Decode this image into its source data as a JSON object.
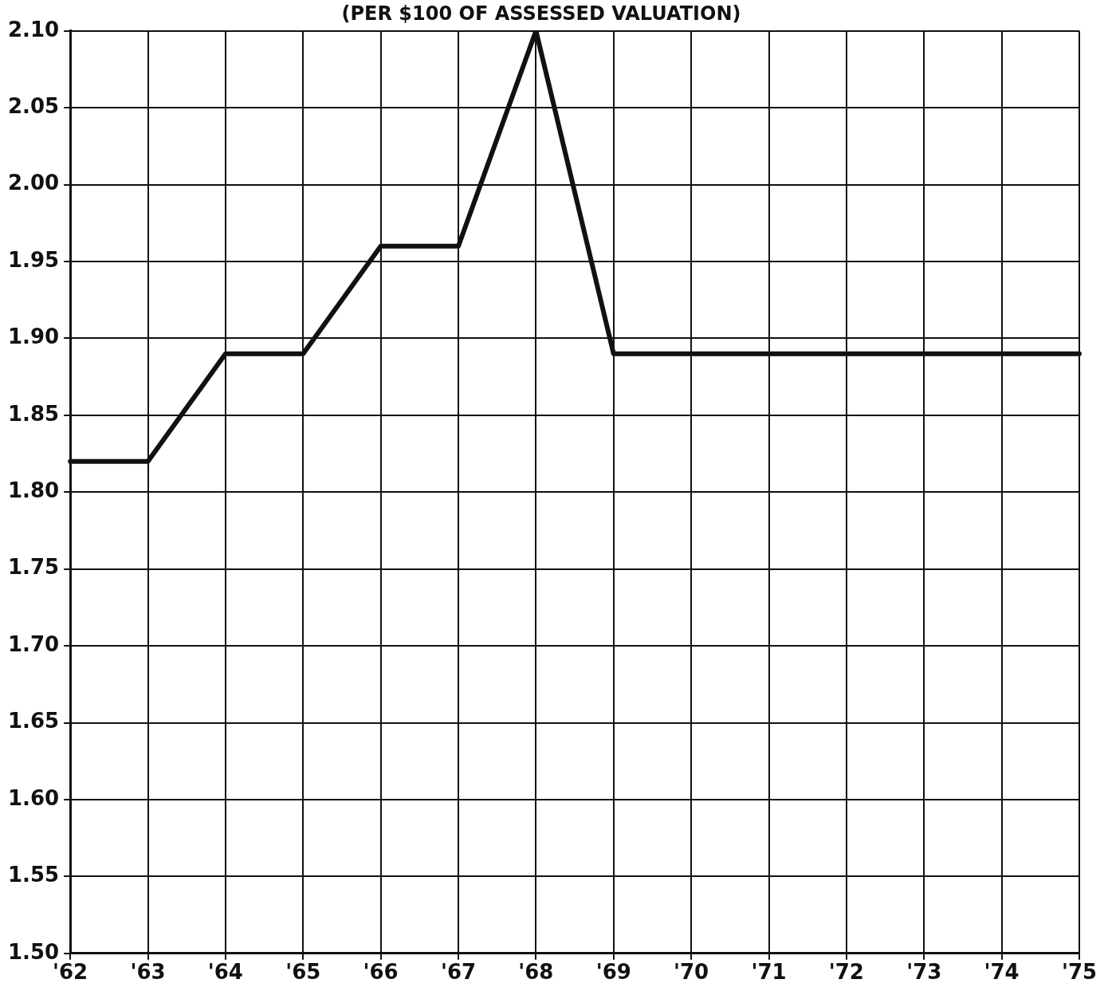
{
  "chart_data": {
    "type": "line",
    "title": "(PER $100 OF ASSESSED VALUATION)",
    "categories": [
      "'62",
      "'63",
      "'64",
      "'65",
      "'66",
      "'67",
      "'68",
      "'69",
      "'70",
      "'71",
      "'72",
      "'73",
      "'74",
      "'75"
    ],
    "series": [
      {
        "color": "#111111",
        "values": [
          1.82,
          1.82,
          1.89,
          1.89,
          1.96,
          1.96,
          2.1,
          1.89,
          1.89,
          1.89,
          1.89,
          1.89,
          1.89,
          1.89
        ]
      }
    ],
    "ylim": [
      1.5,
      2.1
    ],
    "yticks": [
      {
        "value": 1.5,
        "label": "1.50"
      },
      {
        "value": 1.55,
        "label": "1.55"
      },
      {
        "value": 1.6,
        "label": "1.60"
      },
      {
        "value": 1.65,
        "label": "1.65"
      },
      {
        "value": 1.7,
        "label": "1.70"
      },
      {
        "value": 1.75,
        "label": "1.75"
      },
      {
        "value": 1.8,
        "label": "1.80"
      },
      {
        "value": 1.85,
        "label": "1.85"
      },
      {
        "value": 1.9,
        "label": "1.90"
      },
      {
        "value": 1.95,
        "label": "1.95"
      },
      {
        "value": 2.0,
        "label": "2.00"
      },
      {
        "value": 2.05,
        "label": "2.05"
      },
      {
        "value": 2.1,
        "label": "2.10"
      }
    ],
    "grid": true,
    "marker": "none",
    "line_style": "solid",
    "legend": false
  }
}
